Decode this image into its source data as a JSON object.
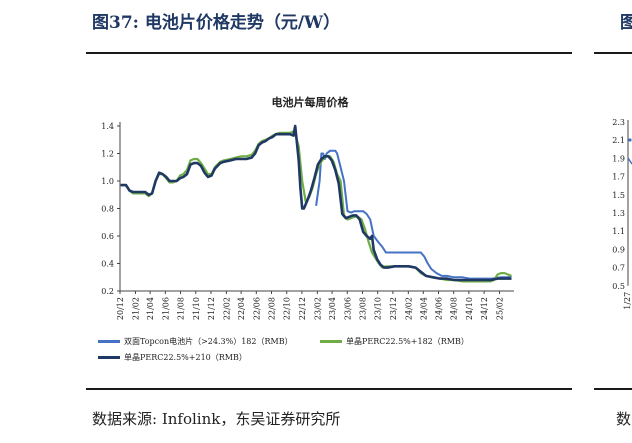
{
  "figure": {
    "title": "图37:  电池片价格走势（元/W）",
    "source": "数据来源:  Infolink，东吴证券研究所"
  },
  "chart_data": {
    "type": "line",
    "title": "电池片每周价格",
    "xlabel": "",
    "ylabel": "",
    "ylim": [
      0.2,
      1.4
    ],
    "yticks": [
      "0.2",
      "0.4",
      "0.6",
      "0.8",
      "1.0",
      "1.2",
      "1.4"
    ],
    "xticks": [
      "20/12",
      "21/02",
      "21/04",
      "21/06",
      "21/08",
      "21/10",
      "21/12",
      "22/02",
      "22/04",
      "22/06",
      "22/08",
      "22/10",
      "22/12",
      "23/02",
      "23/04",
      "23/06",
      "23/08",
      "23/10",
      "23/12",
      "24/02",
      "24/04",
      "24/06",
      "24/08",
      "24/10",
      "24/12",
      "25/02"
    ],
    "legend_position": "bottom",
    "grid": false,
    "series": [
      {
        "name": "双面Topcon电池片（>24.3%）182（RMB）",
        "color": "#4472c4",
        "points": [
          [
            "2023-01-27",
            0.82
          ],
          [
            "2023-02-10",
            1.0
          ],
          [
            "2023-02-17",
            1.2
          ],
          [
            "2023-02-24",
            1.2
          ],
          [
            "2023-03-03",
            1.16
          ],
          [
            "2023-03-10",
            1.2
          ],
          [
            "2023-03-24",
            1.22
          ],
          [
            "2023-04-14",
            1.22
          ],
          [
            "2023-04-21",
            1.2
          ],
          [
            "2023-05-05",
            1.1
          ],
          [
            "2023-05-19",
            1.0
          ],
          [
            "2023-06-02",
            0.78
          ],
          [
            "2023-06-16",
            0.77
          ],
          [
            "2023-06-30",
            0.78
          ],
          [
            "2023-07-14",
            0.78
          ],
          [
            "2023-08-04",
            0.78
          ],
          [
            "2023-08-18",
            0.76
          ],
          [
            "2023-09-01",
            0.72
          ],
          [
            "2023-09-15",
            0.6
          ],
          [
            "2023-10-06",
            0.55
          ],
          [
            "2023-10-20",
            0.52
          ],
          [
            "2023-11-03",
            0.48
          ],
          [
            "2023-11-24",
            0.48
          ],
          [
            "2023-12-15",
            0.48
          ],
          [
            "2024-01-05",
            0.48
          ],
          [
            "2024-02-02",
            0.48
          ],
          [
            "2024-03-01",
            0.48
          ],
          [
            "2024-03-22",
            0.48
          ],
          [
            "2024-04-05",
            0.45
          ],
          [
            "2024-04-19",
            0.4
          ],
          [
            "2024-05-03",
            0.36
          ],
          [
            "2024-05-24",
            0.33
          ],
          [
            "2024-06-14",
            0.31
          ],
          [
            "2024-07-05",
            0.31
          ],
          [
            "2024-08-02",
            0.3
          ],
          [
            "2024-09-06",
            0.3
          ],
          [
            "2024-10-04",
            0.29
          ],
          [
            "2024-11-01",
            0.29
          ],
          [
            "2024-12-06",
            0.29
          ],
          [
            "2025-01-03",
            0.29
          ],
          [
            "2025-02-07",
            0.3
          ],
          [
            "2025-03-07",
            0.3
          ],
          [
            "2025-03-21",
            0.31
          ]
        ]
      },
      {
        "name": "单晶PERC22.5%+182（RMB）",
        "color": "#70ad47",
        "points": [
          [
            "2020-12-04",
            0.97
          ],
          [
            "2020-12-25",
            0.97
          ],
          [
            "2021-01-08",
            0.93
          ],
          [
            "2021-01-22",
            0.91
          ],
          [
            "2021-02-19",
            0.91
          ],
          [
            "2021-03-12",
            0.91
          ],
          [
            "2021-03-26",
            0.89
          ],
          [
            "2021-04-09",
            0.91
          ],
          [
            "2021-04-23",
            1.0
          ],
          [
            "2021-05-07",
            1.05
          ],
          [
            "2021-05-21",
            1.05
          ],
          [
            "2021-06-04",
            1.02
          ],
          [
            "2021-06-18",
            0.99
          ],
          [
            "2021-07-02",
            0.99
          ],
          [
            "2021-07-16",
            1.0
          ],
          [
            "2021-07-30",
            1.04
          ],
          [
            "2021-08-13",
            1.05
          ],
          [
            "2021-08-27",
            1.08
          ],
          [
            "2021-09-10",
            1.15
          ],
          [
            "2021-09-24",
            1.16
          ],
          [
            "2021-10-08",
            1.16
          ],
          [
            "2021-10-22",
            1.13
          ],
          [
            "2021-11-05",
            1.09
          ],
          [
            "2021-11-19",
            1.05
          ],
          [
            "2021-12-03",
            1.05
          ],
          [
            "2021-12-17",
            1.1
          ],
          [
            "2022-01-07",
            1.14
          ],
          [
            "2022-01-21",
            1.15
          ],
          [
            "2022-02-18",
            1.16
          ],
          [
            "2022-03-11",
            1.17
          ],
          [
            "2022-04-01",
            1.18
          ],
          [
            "2022-04-22",
            1.18
          ],
          [
            "2022-05-13",
            1.19
          ],
          [
            "2022-05-27",
            1.22
          ],
          [
            "2022-06-10",
            1.27
          ],
          [
            "2022-06-24",
            1.29
          ],
          [
            "2022-07-08",
            1.3
          ],
          [
            "2022-07-22",
            1.31
          ],
          [
            "2022-08-05",
            1.33
          ],
          [
            "2022-08-19",
            1.34
          ],
          [
            "2022-09-02",
            1.35
          ],
          [
            "2022-09-16",
            1.35
          ],
          [
            "2022-09-30",
            1.35
          ],
          [
            "2022-10-14",
            1.35
          ],
          [
            "2022-10-28",
            1.36
          ],
          [
            "2022-11-04",
            1.34
          ],
          [
            "2022-11-18",
            1.25
          ],
          [
            "2022-12-02",
            1.0
          ],
          [
            "2022-12-16",
            0.85
          ],
          [
            "2022-12-30",
            0.88
          ],
          [
            "2023-01-13",
            0.95
          ],
          [
            "2023-01-27",
            1.05
          ],
          [
            "2023-02-10",
            1.12
          ],
          [
            "2023-02-24",
            1.16
          ],
          [
            "2023-03-10",
            1.18
          ],
          [
            "2023-03-24",
            1.18
          ],
          [
            "2023-04-07",
            1.14
          ],
          [
            "2023-04-21",
            1.05
          ],
          [
            "2023-05-05",
            1.0
          ],
          [
            "2023-05-19",
            0.75
          ],
          [
            "2023-06-02",
            0.72
          ],
          [
            "2023-06-16",
            0.73
          ],
          [
            "2023-06-30",
            0.74
          ],
          [
            "2023-07-14",
            0.74
          ],
          [
            "2023-07-28",
            0.72
          ],
          [
            "2023-08-11",
            0.65
          ],
          [
            "2023-08-25",
            0.56
          ],
          [
            "2023-09-08",
            0.48
          ],
          [
            "2023-09-22",
            0.44
          ],
          [
            "2023-10-06",
            0.4
          ],
          [
            "2023-10-20",
            0.37
          ],
          [
            "2023-11-03",
            0.38
          ],
          [
            "2023-12-01",
            0.38
          ],
          [
            "2024-01-05",
            0.38
          ],
          [
            "2024-02-02",
            0.38
          ],
          [
            "2024-03-01",
            0.37
          ],
          [
            "2024-03-22",
            0.33
          ],
          [
            "2024-04-12",
            0.31
          ],
          [
            "2024-05-10",
            0.3
          ],
          [
            "2024-06-07",
            0.29
          ],
          [
            "2024-07-05",
            0.28
          ],
          [
            "2024-08-02",
            0.28
          ],
          [
            "2024-09-06",
            0.27
          ],
          [
            "2024-10-04",
            0.27
          ],
          [
            "2024-11-01",
            0.27
          ],
          [
            "2024-11-29",
            0.27
          ],
          [
            "2024-12-27",
            0.27
          ],
          [
            "2025-01-10",
            0.28
          ],
          [
            "2025-01-24",
            0.32
          ],
          [
            "2025-02-07",
            0.33
          ],
          [
            "2025-02-21",
            0.33
          ],
          [
            "2025-03-07",
            0.32
          ],
          [
            "2025-03-21",
            0.31
          ]
        ]
      },
      {
        "name": "单晶PERC22.5%+210（RMB）",
        "color": "#1f3864",
        "points": [
          [
            "2020-12-04",
            0.97
          ],
          [
            "2020-12-25",
            0.97
          ],
          [
            "2021-01-08",
            0.93
          ],
          [
            "2021-01-22",
            0.92
          ],
          [
            "2021-02-19",
            0.92
          ],
          [
            "2021-03-12",
            0.92
          ],
          [
            "2021-03-26",
            0.9
          ],
          [
            "2021-04-09",
            0.91
          ],
          [
            "2021-04-23",
            1.0
          ],
          [
            "2021-05-07",
            1.06
          ],
          [
            "2021-05-21",
            1.05
          ],
          [
            "2021-06-04",
            1.03
          ],
          [
            "2021-06-18",
            1.0
          ],
          [
            "2021-07-02",
            1.0
          ],
          [
            "2021-07-16",
            1.0
          ],
          [
            "2021-07-30",
            1.02
          ],
          [
            "2021-08-13",
            1.03
          ],
          [
            "2021-08-27",
            1.05
          ],
          [
            "2021-09-10",
            1.12
          ],
          [
            "2021-09-24",
            1.13
          ],
          [
            "2021-10-08",
            1.13
          ],
          [
            "2021-10-22",
            1.11
          ],
          [
            "2021-11-05",
            1.06
          ],
          [
            "2021-11-19",
            1.03
          ],
          [
            "2021-12-03",
            1.04
          ],
          [
            "2021-12-17",
            1.09
          ],
          [
            "2022-01-07",
            1.13
          ],
          [
            "2022-01-21",
            1.14
          ],
          [
            "2022-02-18",
            1.15
          ],
          [
            "2022-03-11",
            1.16
          ],
          [
            "2022-04-01",
            1.16
          ],
          [
            "2022-04-22",
            1.16
          ],
          [
            "2022-05-13",
            1.17
          ],
          [
            "2022-05-27",
            1.2
          ],
          [
            "2022-06-10",
            1.26
          ],
          [
            "2022-06-24",
            1.28
          ],
          [
            "2022-07-08",
            1.29
          ],
          [
            "2022-07-22",
            1.31
          ],
          [
            "2022-08-05",
            1.32
          ],
          [
            "2022-08-19",
            1.34
          ],
          [
            "2022-09-02",
            1.34
          ],
          [
            "2022-09-16",
            1.34
          ],
          [
            "2022-09-30",
            1.34
          ],
          [
            "2022-10-14",
            1.34
          ],
          [
            "2022-10-28",
            1.33
          ],
          [
            "2022-11-04",
            1.4
          ],
          [
            "2022-11-11",
            1.28
          ],
          [
            "2022-11-18",
            1.15
          ],
          [
            "2022-11-25",
            0.95
          ],
          [
            "2022-12-02",
            0.8
          ],
          [
            "2022-12-09",
            0.8
          ],
          [
            "2022-12-23",
            0.86
          ],
          [
            "2023-01-06",
            0.93
          ],
          [
            "2023-01-20",
            1.02
          ],
          [
            "2023-02-03",
            1.12
          ],
          [
            "2023-02-17",
            1.16
          ],
          [
            "2023-03-03",
            1.18
          ],
          [
            "2023-03-17",
            1.18
          ],
          [
            "2023-03-31",
            1.15
          ],
          [
            "2023-04-14",
            1.08
          ],
          [
            "2023-04-28",
            0.98
          ],
          [
            "2023-05-12",
            0.76
          ],
          [
            "2023-05-26",
            0.73
          ],
          [
            "2023-06-09",
            0.74
          ],
          [
            "2023-06-23",
            0.75
          ],
          [
            "2023-07-07",
            0.75
          ],
          [
            "2023-07-21",
            0.72
          ],
          [
            "2023-08-04",
            0.63
          ],
          [
            "2023-08-18",
            0.6
          ],
          [
            "2023-09-01",
            0.58
          ],
          [
            "2023-09-08",
            0.6
          ],
          [
            "2023-09-15",
            0.5
          ],
          [
            "2023-09-29",
            0.43
          ],
          [
            "2023-10-13",
            0.39
          ],
          [
            "2023-10-27",
            0.37
          ],
          [
            "2023-11-10",
            0.37
          ],
          [
            "2023-12-08",
            0.38
          ],
          [
            "2024-01-05",
            0.38
          ],
          [
            "2024-02-02",
            0.38
          ],
          [
            "2024-03-01",
            0.37
          ],
          [
            "2024-03-22",
            0.34
          ],
          [
            "2024-04-12",
            0.31
          ],
          [
            "2024-05-10",
            0.3
          ],
          [
            "2024-06-07",
            0.29
          ],
          [
            "2024-07-05",
            0.29
          ],
          [
            "2024-08-02",
            0.28
          ],
          [
            "2024-09-06",
            0.28
          ],
          [
            "2024-10-04",
            0.28
          ],
          [
            "2024-11-01",
            0.28
          ],
          [
            "2024-11-29",
            0.28
          ],
          [
            "2024-12-27",
            0.28
          ],
          [
            "2025-01-24",
            0.29
          ],
          [
            "2025-02-21",
            0.29
          ],
          [
            "2025-03-21",
            0.29
          ]
        ]
      }
    ]
  },
  "side_panel": {
    "title": "图",
    "yticks": [
      "2.3",
      "2.1",
      "1.9",
      "1.7",
      "1.5",
      "1.3",
      "1.1",
      "0.9",
      "0.7",
      "0.5"
    ],
    "first_xtick": "11/27",
    "source": "数"
  }
}
